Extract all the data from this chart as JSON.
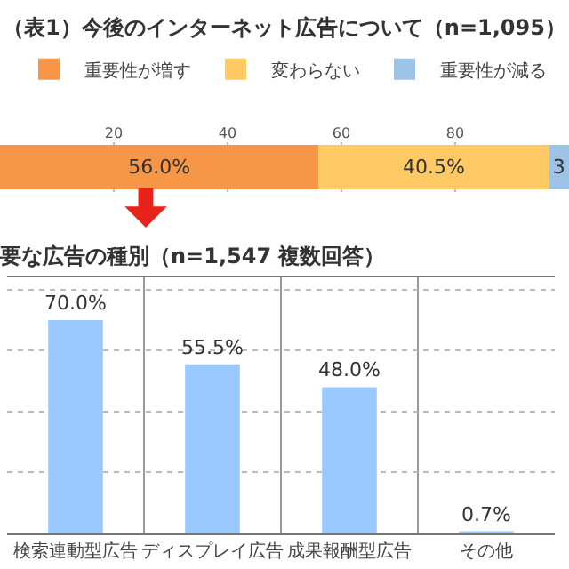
{
  "chart_data": [
    {
      "type": "bar",
      "title": "（表1）今後のインターネット広告について（n=1,095）",
      "orientation": "horizontal",
      "stacked": true,
      "categories": [
        null
      ],
      "xlim": [
        0,
        100
      ],
      "xticks": [
        20,
        40,
        60,
        80
      ],
      "grid": "x",
      "legend": "top",
      "series": [
        {
          "name": "重要性が増す",
          "color": "#f79646",
          "values": [
            56.0
          ],
          "value_labels": [
            "56.0%"
          ]
        },
        {
          "name": "変わらない",
          "color": "#ffc964",
          "values": [
            40.5
          ],
          "value_labels": [
            "40.5%"
          ]
        },
        {
          "name": "重要性が減る",
          "color": "#9dc3e6",
          "values": [
            3.5
          ],
          "value_labels": [
            "3"
          ]
        }
      ]
    },
    {
      "type": "bar",
      "title": "要な広告の種別（n=1,547 複数回答）",
      "categories": [
        "検索連動型広告",
        "ディスプレイ広告",
        "成果報酬型広告",
        "その他"
      ],
      "values": [
        70.0,
        55.5,
        48.0,
        0.7
      ],
      "value_labels": [
        "70.0%",
        "55.5%",
        "48.0%",
        "0.7%"
      ],
      "color": "#99c9ff",
      "grid": true,
      "tick_labels": "x",
      "legend": false
    }
  ]
}
